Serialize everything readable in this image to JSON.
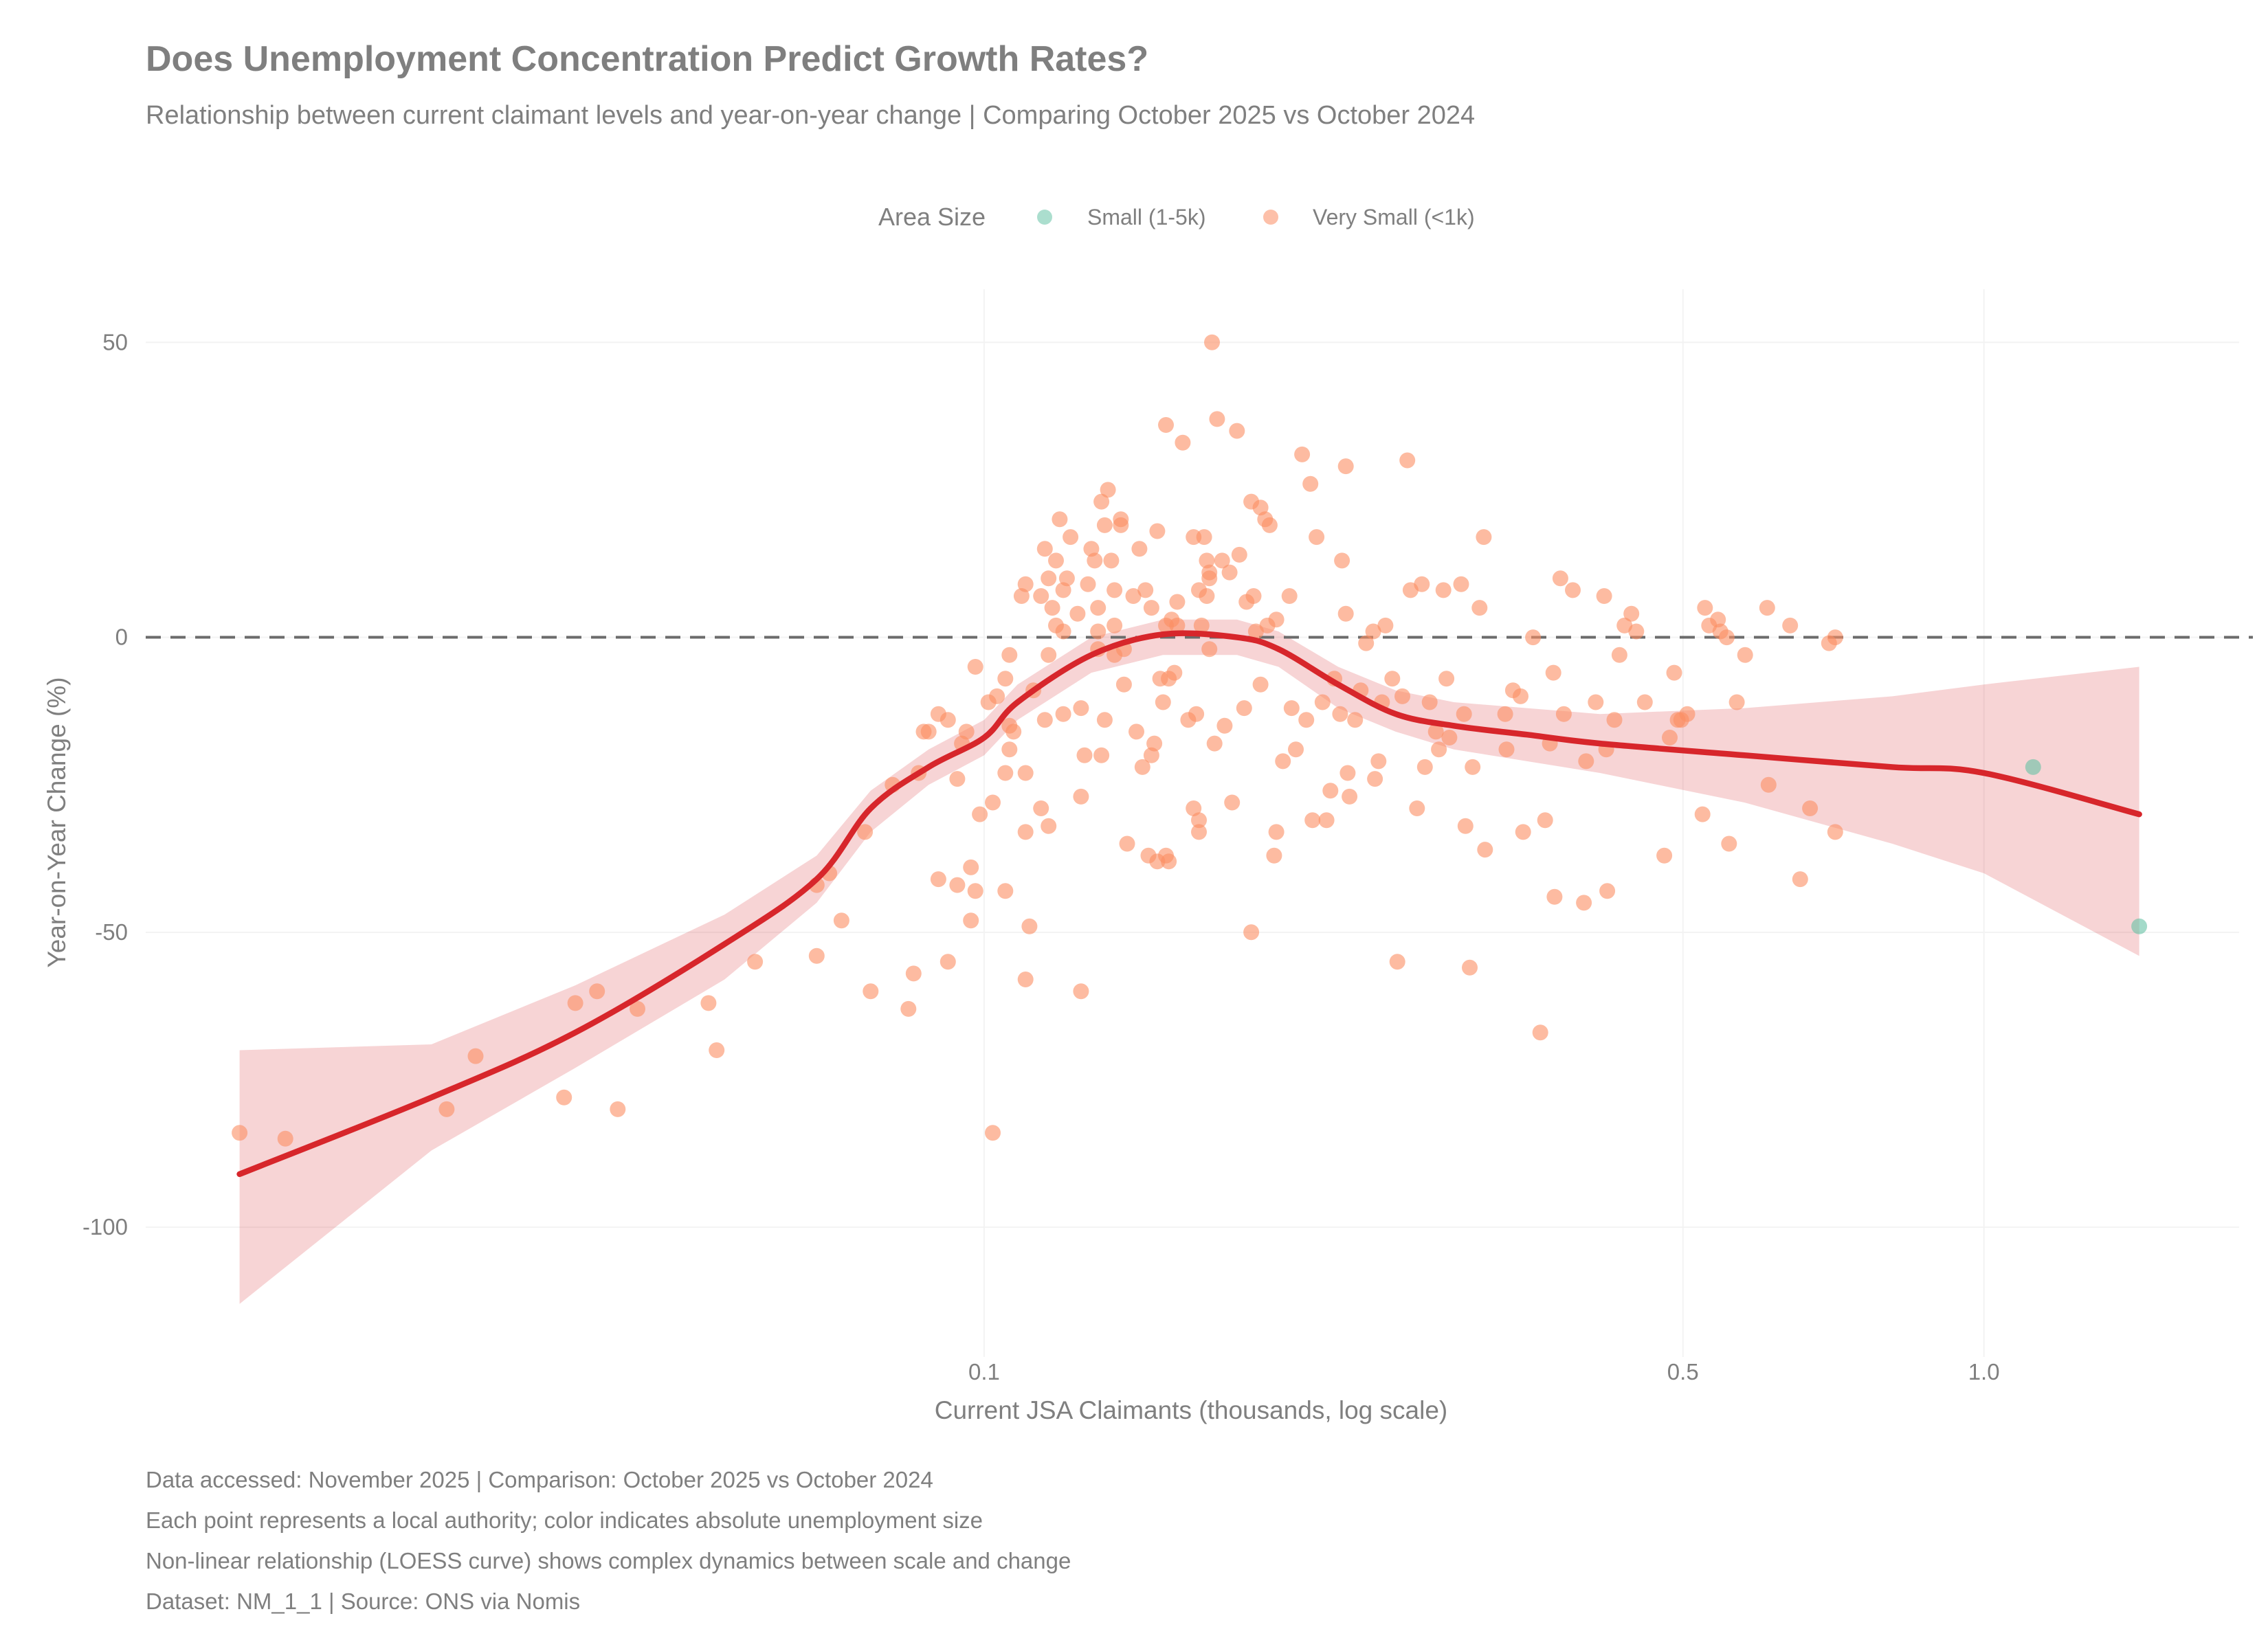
{
  "chart_data": {
    "type": "scatter",
    "title": "Does Unemployment Concentration Predict Growth Rates?",
    "subtitle": "Relationship between current claimant levels and year-on-year change | Comparing October 2025 vs October 2024",
    "xlabel": "Current JSA Claimants (thousands, log scale)",
    "ylabel": "Year-on-Year Change (%)",
    "x_scale": "log",
    "xlim": [
      0.0145,
      1.8
    ],
    "ylim": [
      -122,
      59
    ],
    "x_ticks": [
      {
        "value": 0.1,
        "label": "0.1"
      },
      {
        "value": 0.5,
        "label": "0.5"
      },
      {
        "value": 1.0,
        "label": "1.0"
      }
    ],
    "y_ticks": [
      {
        "value": 50,
        "label": "50"
      },
      {
        "value": 0,
        "label": "0"
      },
      {
        "value": -50,
        "label": "-50"
      },
      {
        "value": -100,
        "label": "-100"
      }
    ],
    "grid": true,
    "reference_line": {
      "y": 0,
      "style": "dashed",
      "color": "#666666"
    },
    "legend": {
      "title": "Area Size",
      "placement": "top",
      "entries": [
        {
          "label": "Small (1-5k)",
          "color": "#66C2A5"
        },
        {
          "label": "Very Small (<1k)",
          "color": "#FC8D62"
        }
      ]
    },
    "series": [
      {
        "name": "Small (1-5k)",
        "color": "#66C2A5",
        "points": [
          [
            1.12,
            -22
          ],
          [
            1.43,
            -49
          ]
        ]
      },
      {
        "name": "Very Small (<1k)",
        "color": "#FC8D62",
        "points": [
          [
            0.018,
            -84
          ],
          [
            0.02,
            -85
          ],
          [
            0.029,
            -80
          ],
          [
            0.031,
            -71
          ],
          [
            0.038,
            -78
          ],
          [
            0.039,
            -62
          ],
          [
            0.041,
            -60
          ],
          [
            0.043,
            -80
          ],
          [
            0.045,
            -63
          ],
          [
            0.053,
            -62
          ],
          [
            0.054,
            -70
          ],
          [
            0.059,
            -55
          ],
          [
            0.068,
            -54
          ],
          [
            0.068,
            -42
          ],
          [
            0.07,
            -40
          ],
          [
            0.072,
            -48
          ],
          [
            0.076,
            -33
          ],
          [
            0.077,
            -60
          ],
          [
            0.081,
            -25
          ],
          [
            0.084,
            -63
          ],
          [
            0.085,
            -57
          ],
          [
            0.086,
            -23
          ],
          [
            0.087,
            -16
          ],
          [
            0.088,
            -16
          ],
          [
            0.09,
            -13
          ],
          [
            0.09,
            -41
          ],
          [
            0.092,
            -14
          ],
          [
            0.092,
            -55
          ],
          [
            0.094,
            -42
          ],
          [
            0.094,
            -24
          ],
          [
            0.095,
            -18
          ],
          [
            0.096,
            -16
          ],
          [
            0.097,
            -48
          ],
          [
            0.097,
            -39
          ],
          [
            0.098,
            -5
          ],
          [
            0.098,
            -43
          ],
          [
            0.099,
            -30
          ],
          [
            0.101,
            -11
          ],
          [
            0.102,
            -28
          ],
          [
            0.102,
            -84
          ],
          [
            0.103,
            -10
          ],
          [
            0.105,
            -23
          ],
          [
            0.105,
            -7
          ],
          [
            0.105,
            -43
          ],
          [
            0.106,
            -3
          ],
          [
            0.106,
            -15
          ],
          [
            0.106,
            -19
          ],
          [
            0.107,
            -16
          ],
          [
            0.109,
            7
          ],
          [
            0.11,
            9
          ],
          [
            0.11,
            -23
          ],
          [
            0.11,
            -33
          ],
          [
            0.11,
            -58
          ],
          [
            0.111,
            -49
          ],
          [
            0.112,
            -9
          ],
          [
            0.114,
            7
          ],
          [
            0.114,
            -29
          ],
          [
            0.115,
            -14
          ],
          [
            0.115,
            15
          ],
          [
            0.116,
            -32
          ],
          [
            0.116,
            -3
          ],
          [
            0.116,
            10
          ],
          [
            0.117,
            5
          ],
          [
            0.118,
            2
          ],
          [
            0.118,
            13
          ],
          [
            0.119,
            20
          ],
          [
            0.12,
            -13
          ],
          [
            0.12,
            8
          ],
          [
            0.12,
            1
          ],
          [
            0.121,
            10
          ],
          [
            0.122,
            17
          ],
          [
            0.124,
            4
          ],
          [
            0.125,
            -27
          ],
          [
            0.125,
            -60
          ],
          [
            0.125,
            -12
          ],
          [
            0.126,
            -20
          ],
          [
            0.127,
            9
          ],
          [
            0.128,
            15
          ],
          [
            0.129,
            13
          ],
          [
            0.13,
            1
          ],
          [
            0.13,
            -2
          ],
          [
            0.13,
            5
          ],
          [
            0.131,
            23
          ],
          [
            0.131,
            -20
          ],
          [
            0.132,
            19
          ],
          [
            0.132,
            -14
          ],
          [
            0.133,
            25
          ],
          [
            0.134,
            13
          ],
          [
            0.135,
            -3
          ],
          [
            0.135,
            2
          ],
          [
            0.135,
            8
          ],
          [
            0.137,
            20
          ],
          [
            0.137,
            19
          ],
          [
            0.138,
            -8
          ],
          [
            0.138,
            -2
          ],
          [
            0.139,
            -35
          ],
          [
            0.141,
            7
          ],
          [
            0.142,
            -16
          ],
          [
            0.143,
            15
          ],
          [
            0.144,
            -22
          ],
          [
            0.145,
            8
          ],
          [
            0.146,
            -37
          ],
          [
            0.147,
            5
          ],
          [
            0.147,
            -20
          ],
          [
            0.148,
            -18
          ],
          [
            0.149,
            -38
          ],
          [
            0.149,
            18
          ],
          [
            0.15,
            -7
          ],
          [
            0.151,
            -11
          ],
          [
            0.152,
            2
          ],
          [
            0.152,
            36
          ],
          [
            0.152,
            -37
          ],
          [
            0.153,
            -7
          ],
          [
            0.153,
            -38
          ],
          [
            0.154,
            3
          ],
          [
            0.155,
            -6
          ],
          [
            0.156,
            6
          ],
          [
            0.156,
            2
          ],
          [
            0.158,
            33
          ],
          [
            0.16,
            -14
          ],
          [
            0.162,
            -29
          ],
          [
            0.162,
            17
          ],
          [
            0.163,
            -13
          ],
          [
            0.164,
            -31
          ],
          [
            0.164,
            8
          ],
          [
            0.164,
            -33
          ],
          [
            0.165,
            2
          ],
          [
            0.166,
            17
          ],
          [
            0.167,
            13
          ],
          [
            0.167,
            7
          ],
          [
            0.168,
            10
          ],
          [
            0.168,
            11
          ],
          [
            0.168,
            -2
          ],
          [
            0.169,
            50
          ],
          [
            0.17,
            -18
          ],
          [
            0.171,
            37
          ],
          [
            0.173,
            13
          ],
          [
            0.174,
            -15
          ],
          [
            0.176,
            11
          ],
          [
            0.177,
            -28
          ],
          [
            0.179,
            35
          ],
          [
            0.18,
            14
          ],
          [
            0.182,
            -12
          ],
          [
            0.183,
            6
          ],
          [
            0.185,
            23
          ],
          [
            0.185,
            -50
          ],
          [
            0.186,
            7
          ],
          [
            0.187,
            1
          ],
          [
            0.189,
            22
          ],
          [
            0.189,
            -8
          ],
          [
            0.191,
            20
          ],
          [
            0.192,
            2
          ],
          [
            0.193,
            19
          ],
          [
            0.195,
            -37
          ],
          [
            0.196,
            3
          ],
          [
            0.196,
            -33
          ],
          [
            0.199,
            -21
          ],
          [
            0.202,
            7
          ],
          [
            0.203,
            -12
          ],
          [
            0.205,
            -19
          ],
          [
            0.208,
            31
          ],
          [
            0.21,
            -14
          ],
          [
            0.212,
            26
          ],
          [
            0.213,
            -31
          ],
          [
            0.215,
            17
          ],
          [
            0.218,
            -11
          ],
          [
            0.22,
            -31
          ],
          [
            0.222,
            -26
          ],
          [
            0.224,
            -7
          ],
          [
            0.227,
            -13
          ],
          [
            0.228,
            13
          ],
          [
            0.23,
            4
          ],
          [
            0.23,
            29
          ],
          [
            0.231,
            -23
          ],
          [
            0.232,
            -27
          ],
          [
            0.235,
            -14
          ],
          [
            0.238,
            -9
          ],
          [
            0.241,
            -1
          ],
          [
            0.245,
            1
          ],
          [
            0.246,
            -24
          ],
          [
            0.248,
            -21
          ],
          [
            0.25,
            -11
          ],
          [
            0.252,
            2
          ],
          [
            0.256,
            -7
          ],
          [
            0.259,
            -55
          ],
          [
            0.262,
            -10
          ],
          [
            0.265,
            30
          ],
          [
            0.267,
            8
          ],
          [
            0.271,
            -29
          ],
          [
            0.274,
            9
          ],
          [
            0.276,
            -22
          ],
          [
            0.279,
            -11
          ],
          [
            0.283,
            -16
          ],
          [
            0.285,
            -19
          ],
          [
            0.288,
            8
          ],
          [
            0.29,
            -7
          ],
          [
            0.292,
            -17
          ],
          [
            0.3,
            9
          ],
          [
            0.302,
            -13
          ],
          [
            0.303,
            -32
          ],
          [
            0.306,
            -56
          ],
          [
            0.308,
            -22
          ],
          [
            0.313,
            5
          ],
          [
            0.316,
            17
          ],
          [
            0.317,
            -36
          ],
          [
            0.332,
            -13
          ],
          [
            0.333,
            -19
          ],
          [
            0.338,
            -9
          ],
          [
            0.344,
            -10
          ],
          [
            0.346,
            -33
          ],
          [
            0.354,
            0
          ],
          [
            0.36,
            -67
          ],
          [
            0.364,
            -31
          ],
          [
            0.368,
            -18
          ],
          [
            0.371,
            -6
          ],
          [
            0.372,
            -44
          ],
          [
            0.377,
            10
          ],
          [
            0.38,
            -13
          ],
          [
            0.388,
            8
          ],
          [
            0.398,
            -45
          ],
          [
            0.4,
            -21
          ],
          [
            0.409,
            -11
          ],
          [
            0.417,
            7
          ],
          [
            0.419,
            -19
          ],
          [
            0.42,
            -43
          ],
          [
            0.427,
            -14
          ],
          [
            0.432,
            -3
          ],
          [
            0.437,
            2
          ],
          [
            0.444,
            4
          ],
          [
            0.449,
            1
          ],
          [
            0.458,
            -11
          ],
          [
            0.479,
            -37
          ],
          [
            0.485,
            -17
          ],
          [
            0.49,
            -6
          ],
          [
            0.494,
            -14
          ],
          [
            0.498,
            -14
          ],
          [
            0.505,
            -13
          ],
          [
            0.523,
            -30
          ],
          [
            0.526,
            5
          ],
          [
            0.531,
            2
          ],
          [
            0.542,
            3
          ],
          [
            0.545,
            1
          ],
          [
            0.553,
            0
          ],
          [
            0.556,
            -35
          ],
          [
            0.566,
            -11
          ],
          [
            0.577,
            -3
          ],
          [
            0.607,
            5
          ],
          [
            0.609,
            -25
          ],
          [
            0.64,
            2
          ],
          [
            0.655,
            -41
          ],
          [
            0.67,
            -29
          ],
          [
            0.7,
            -1
          ],
          [
            0.71,
            -33
          ],
          [
            0.71,
            0
          ]
        ]
      }
    ],
    "loess": {
      "label": "LOESS",
      "color": "#D7262B",
      "band_color": "#D7262B",
      "x": [
        0.018,
        0.028,
        0.039,
        0.055,
        0.068,
        0.077,
        0.088,
        0.1,
        0.108,
        0.128,
        0.151,
        0.179,
        0.197,
        0.226,
        0.258,
        0.295,
        0.349,
        0.413,
        0.576,
        0.81,
        1.0,
        1.43
      ],
      "y": [
        -91,
        -78,
        -67,
        -52,
        -41,
        -29,
        -22,
        -17,
        -11,
        -3,
        0.5,
        0,
        -2,
        -8,
        -13,
        -15,
        -16.5,
        -18,
        -20,
        -22,
        -23,
        -30
      ],
      "lower": [
        -113,
        -87,
        -73,
        -58,
        -45,
        -33,
        -25,
        -20,
        -14,
        -6,
        -3,
        -3,
        -5,
        -12,
        -16,
        -19,
        -21,
        -23,
        -28,
        -35,
        -40,
        -54
      ],
      "upper": [
        -70,
        -69,
        -59,
        -47,
        -37,
        -26,
        -19,
        -14,
        -8,
        0,
        3,
        3,
        1,
        -5,
        -9,
        -11,
        -12,
        -13,
        -12,
        -10,
        -8,
        -5
      ]
    },
    "caption": [
      "Data accessed: November 2025 | Comparison: October 2025 vs October 2024",
      "Each point represents a local authority; color indicates absolute unemployment size",
      "Non-linear relationship (LOESS curve) shows complex dynamics between scale and change",
      "Dataset: NM_1_1 | Source: ONS via Nomis"
    ]
  }
}
